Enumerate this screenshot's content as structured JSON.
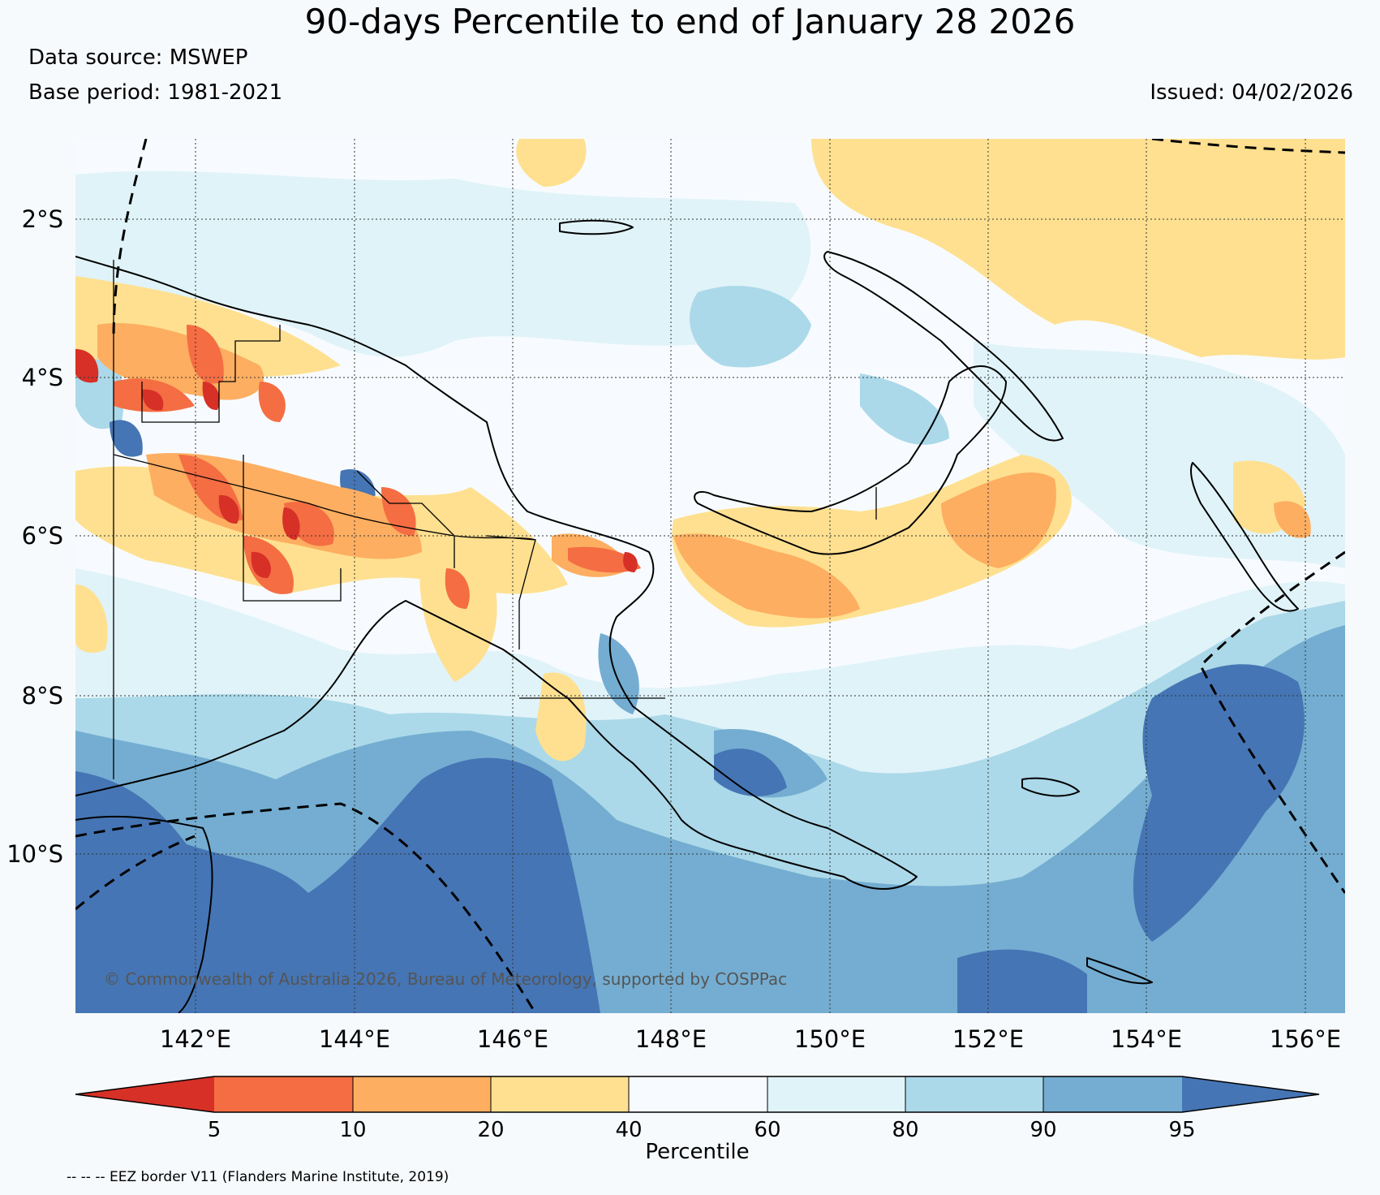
{
  "title": "90-days Percentile to end of January 28 2026",
  "data_source": "Data source: MSWEP",
  "base_period": "Base period: 1981-2021",
  "issued": "Issued: 04/02/2026",
  "map": {
    "lat_labels": [
      "2°S",
      "4°S",
      "6°S",
      "8°S",
      "10°S"
    ],
    "lon_labels": [
      "142°E",
      "144°E",
      "146°E",
      "148°E",
      "150°E",
      "152°E",
      "154°E",
      "156°E"
    ],
    "copyright": "© Commonwealth of Australia 2026, Bureau of Meteorology, supported by COSPPac"
  },
  "colorbar": {
    "title": "Percentile",
    "ticks": [
      "5",
      "10",
      "20",
      "40",
      "60",
      "80",
      "90",
      "95"
    ],
    "colors": [
      "#d73027",
      "#f46d43",
      "#fdae61",
      "#fee090",
      "#f7fbff",
      "#e0f3f8",
      "#abd9e9",
      "#74add1",
      "#4575b4"
    ]
  },
  "eez_note": "-- -- -- EEZ border V11 (Flanders Marine Institute, 2019)"
}
